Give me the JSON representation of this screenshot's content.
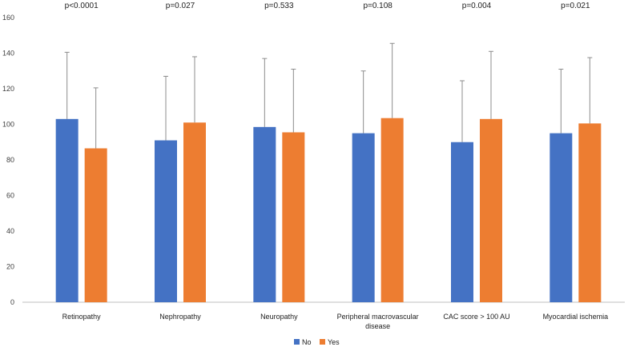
{
  "chart_data": {
    "type": "bar",
    "title": "",
    "xlabel": "",
    "ylabel": "",
    "ylim": [
      0,
      160
    ],
    "yticks": [
      0,
      20,
      40,
      60,
      80,
      100,
      120,
      140,
      160
    ],
    "grid": false,
    "legend_position": "bottom",
    "categories": [
      [
        "Retinopathy"
      ],
      [
        "Nephropathy"
      ],
      [
        "Neuropathy"
      ],
      [
        "Peripheral macrovascular",
        "disease"
      ],
      [
        "CAC score > 100 AU"
      ],
      [
        "Myocardial ischemia"
      ]
    ],
    "p_values": [
      "p<0.0001",
      "p=0.027",
      "p=0.533",
      "p=0.108",
      "p=0.004",
      "p=0.021"
    ],
    "series": [
      {
        "name": "No",
        "color": "#4472C4",
        "values": [
          103,
          91,
          98.5,
          95,
          90,
          95
        ],
        "error_upper": [
          140.5,
          127,
          137,
          130,
          124.5,
          131
        ]
      },
      {
        "name": "Yes",
        "color": "#ED7D31",
        "values": [
          86.5,
          101,
          95.5,
          103.5,
          103,
          100.5
        ],
        "error_upper": [
          120.5,
          138,
          131,
          145.5,
          141,
          137.5
        ]
      }
    ]
  }
}
